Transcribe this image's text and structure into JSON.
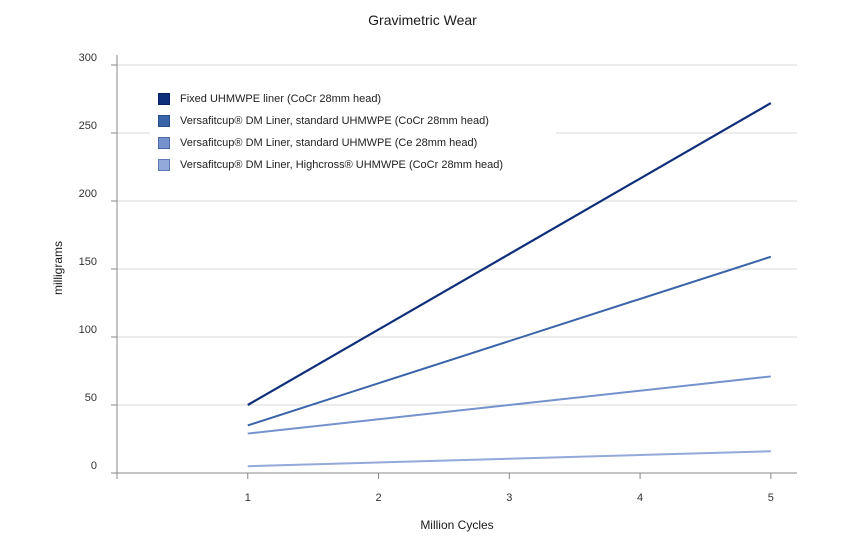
{
  "chart_data": {
    "type": "line",
    "title": "Gravimetric Wear",
    "xlabel": "Million Cycles",
    "ylabel": "milligrams",
    "xlim": [
      0,
      5.2
    ],
    "ylim": [
      0,
      300
    ],
    "x_ticks": [
      1,
      2,
      3,
      4,
      5
    ],
    "y_ticks": [
      0,
      50,
      100,
      150,
      200,
      250,
      300
    ],
    "grid": true,
    "legend_position": "top-left",
    "series": [
      {
        "name": "Fixed UHMWPE liner (CoCr 28mm head)",
        "color": "#0f2f7a",
        "swatch_border": "#0a2060",
        "x": [
          1,
          5
        ],
        "values": [
          50,
          272
        ]
      },
      {
        "name": "Versafitcup® DM Liner, standard UHMWPE (CoCr 28mm head)",
        "color": "#3a64a8",
        "swatch_border": "#284e8c",
        "x": [
          1,
          5
        ],
        "values": [
          35,
          159
        ]
      },
      {
        "name": "Versafitcup® DM Liner, standard UHMWPE (Ce 28mm head)",
        "color": "#7592cc",
        "swatch_border": "#4d6aa8",
        "x": [
          1,
          5
        ],
        "values": [
          29,
          71
        ]
      },
      {
        "name": "Versafitcup® DM Liner, Highcross® UHMWPE (CoCr 28mm head)",
        "color": "#93a9d9",
        "swatch_border": "#5f78b8",
        "x": [
          1,
          5
        ],
        "values": [
          5,
          16
        ]
      }
    ]
  }
}
